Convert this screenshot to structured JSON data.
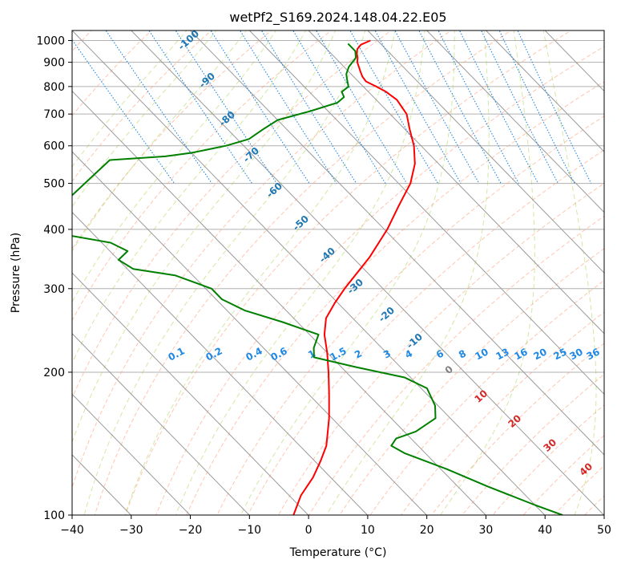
{
  "chart_data": {
    "type": "line",
    "title": "wetPf2_S169.2024.148.04.22.E05",
    "xlabel": "Temperature (°C)",
    "ylabel": "Pressure (hPa)",
    "xlim": [
      -40,
      50
    ],
    "ylim": [
      1050,
      100
    ],
    "y_scale": "log",
    "x_ticks": [
      -40,
      -30,
      -20,
      -10,
      0,
      10,
      20,
      30,
      40,
      50
    ],
    "y_ticks": [
      100,
      200,
      300,
      400,
      500,
      600,
      700,
      800,
      900,
      1000
    ],
    "grid": true,
    "skew": true,
    "series": [
      {
        "color": "#ff0000",
        "points": [
          {
            "p": 1000,
            "t": 8.8
          },
          {
            "p": 980,
            "t": 6.5
          },
          {
            "p": 960,
            "t": 5.2
          },
          {
            "p": 940,
            "t": 4.4
          },
          {
            "p": 920,
            "t": 3.8
          },
          {
            "p": 900,
            "t": 3.0
          },
          {
            "p": 880,
            "t": 2.5
          },
          {
            "p": 860,
            "t": 2.0
          },
          {
            "p": 840,
            "t": 1.5
          },
          {
            "p": 820,
            "t": 1.3
          },
          {
            "p": 800,
            "t": 2.2
          },
          {
            "p": 780,
            "t": 3.0
          },
          {
            "p": 750,
            "t": 3.5
          },
          {
            "p": 700,
            "t": 2.8
          },
          {
            "p": 650,
            "t": 0.8
          },
          {
            "p": 600,
            "t": -1.2
          },
          {
            "p": 550,
            "t": -4.0
          },
          {
            "p": 500,
            "t": -8.0
          },
          {
            "p": 450,
            "t": -13.5
          },
          {
            "p": 400,
            "t": -19.5
          },
          {
            "p": 350,
            "t": -27.0
          },
          {
            "p": 300,
            "t": -36.5
          },
          {
            "p": 280,
            "t": -40.5
          },
          {
            "p": 260,
            "t": -44.5
          },
          {
            "p": 240,
            "t": -47.5
          },
          {
            "p": 220,
            "t": -50.0
          },
          {
            "p": 200,
            "t": -53.0
          },
          {
            "p": 180,
            "t": -56.5
          },
          {
            "p": 160,
            "t": -60.5
          },
          {
            "p": 140,
            "t": -65.5
          },
          {
            "p": 130,
            "t": -69.0
          },
          {
            "p": 120,
            "t": -73.0
          },
          {
            "p": 110,
            "t": -78.0
          },
          {
            "p": 100,
            "t": -82.5
          }
        ]
      },
      {
        "color": "#008000",
        "points": [
          {
            "p": 985,
            "t": 4.5
          },
          {
            "p": 950,
            "t": 4.5
          },
          {
            "p": 920,
            "t": 3.5
          },
          {
            "p": 880,
            "t": 0.8
          },
          {
            "p": 850,
            "t": -0.8
          },
          {
            "p": 830,
            "t": -1.5
          },
          {
            "p": 800,
            "t": -2.5
          },
          {
            "p": 780,
            "t": -4.5
          },
          {
            "p": 760,
            "t": -5.0
          },
          {
            "p": 740,
            "t": -7.0
          },
          {
            "p": 710,
            "t": -13.0
          },
          {
            "p": 680,
            "t": -20.0
          },
          {
            "p": 650,
            "t": -24.0
          },
          {
            "p": 620,
            "t": -28.0
          },
          {
            "p": 600,
            "t": -33.0
          },
          {
            "p": 580,
            "t": -40.0
          },
          {
            "p": 570,
            "t": -45.0
          },
          {
            "p": 560,
            "t": -55.0
          },
          {
            "p": 400,
            "t": -79.0
          },
          {
            "p": 390,
            "t": -75.0
          },
          {
            "p": 375,
            "t": -68.5
          },
          {
            "p": 360,
            "t": -67.0
          },
          {
            "p": 345,
            "t": -70.0
          },
          {
            "p": 330,
            "t": -69.0
          },
          {
            "p": 320,
            "t": -63.0
          },
          {
            "p": 300,
            "t": -59.0
          },
          {
            "p": 285,
            "t": -59.0
          },
          {
            "p": 270,
            "t": -57.0
          },
          {
            "p": 255,
            "t": -52.5
          },
          {
            "p": 240,
            "t": -48.5
          },
          {
            "p": 225,
            "t": -51.5
          },
          {
            "p": 215,
            "t": -53.0
          },
          {
            "p": 205,
            "t": -47.5
          },
          {
            "p": 195,
            "t": -41.0
          },
          {
            "p": 185,
            "t": -39.0
          },
          {
            "p": 170,
            "t": -40.5
          },
          {
            "p": 160,
            "t": -42.5
          },
          {
            "p": 150,
            "t": -48.0
          },
          {
            "p": 145,
            "t": -52.5
          },
          {
            "p": 140,
            "t": -54.5
          },
          {
            "p": 135,
            "t": -53.5
          },
          {
            "p": 125,
            "t": -49.0
          },
          {
            "p": 115,
            "t": -45.0
          },
          {
            "p": 105,
            "t": -40.0
          },
          {
            "p": 100,
            "t": -37.0
          }
        ]
      }
    ],
    "dry_adiabat_labels": [
      "-100",
      "-90",
      "-80",
      "-70",
      "-60",
      "-50",
      "-40",
      "-30",
      "-20",
      "-10",
      "0",
      "10",
      "20",
      "30",
      "40"
    ],
    "mixing_ratio_labels": [
      "0.1",
      "0.2",
      "0.4",
      "0.6",
      "1",
      "1.5",
      "2",
      "3",
      "4",
      "6",
      "8",
      "10",
      "13",
      "16",
      "20",
      "25",
      "30",
      "36"
    ],
    "colors": {
      "temperature": "#ff0000",
      "dewpoint": "#008000",
      "dry_adiabat": "#ffa07a",
      "moist_adiabat": "#9acd32",
      "mixing_ratio": "#1e88e5",
      "isotherm": "#808080",
      "dry_label": "#1f77b4",
      "warm_label": "#d62728"
    }
  }
}
